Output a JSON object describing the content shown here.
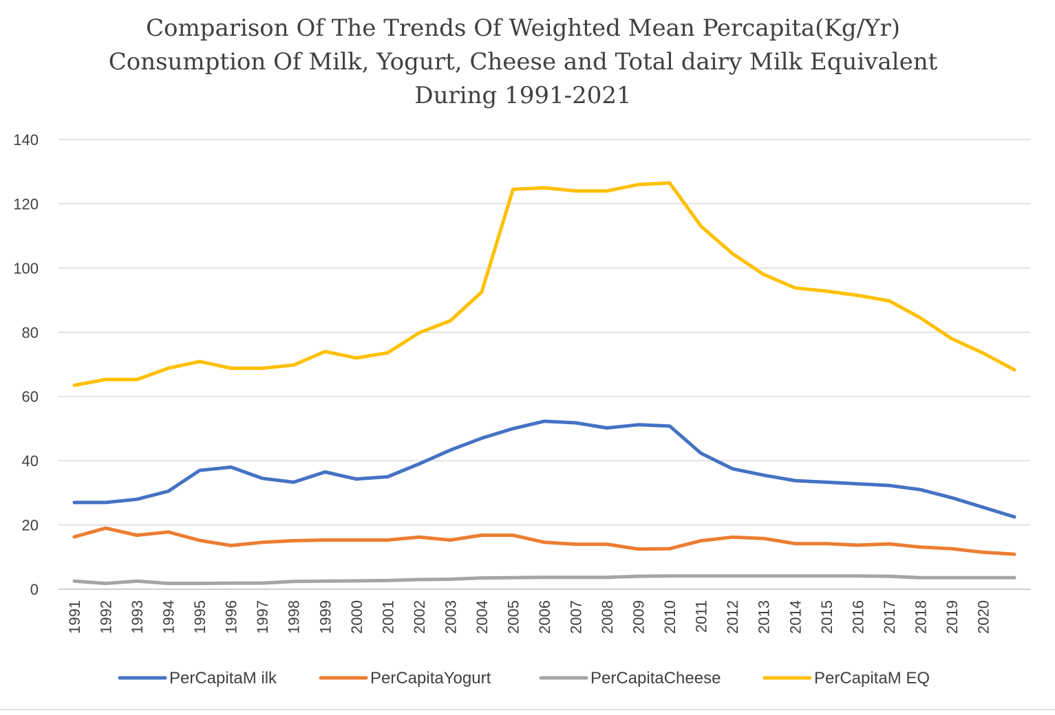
{
  "chart_data": {
    "type": "line",
    "title": [
      "Comparison Of The Trends Of Weighted Mean Percapita(Kg/Yr)",
      "Consumption Of Milk, Yogurt, Cheese and Total dairy Milk Equivalent",
      "During 1991-2021"
    ],
    "xlabel": "",
    "ylabel": "",
    "ylim": [
      0,
      140
    ],
    "yticks": [
      0,
      20,
      40,
      60,
      80,
      100,
      120,
      140
    ],
    "categories": [
      "1991",
      "1992",
      "1993",
      "1994",
      "1995",
      "1996",
      "1997",
      "1998",
      "1999",
      "2000",
      "2001",
      "2002",
      "2003",
      "2004",
      "2005",
      "2006",
      "2007",
      "2008",
      "2009",
      "2010",
      "2011",
      "2012",
      "2013",
      "2014",
      "2015",
      "2016",
      "2017",
      "2018",
      "2019",
      "2020",
      ""
    ],
    "grid": true,
    "legend_position": "bottom",
    "series": [
      {
        "name": "PerCapitaM ilk",
        "color": "#4472c4",
        "values": [
          27,
          27,
          28,
          30.5,
          37,
          38,
          34.5,
          33.3,
          36.5,
          34.3,
          35,
          39,
          43.3,
          47,
          50,
          52.3,
          51.8,
          50.2,
          51.2,
          50.8,
          42.3,
          37.5,
          35.5,
          33.8,
          33.3,
          32.8,
          32.3,
          31,
          28.5,
          25.5,
          22.5
        ]
      },
      {
        "name": "PerCapitaYogurt",
        "color": "#ed7d31",
        "values": [
          16.3,
          19,
          16.8,
          17.8,
          15.2,
          13.6,
          14.6,
          15.1,
          15.3,
          15.3,
          15.3,
          16.2,
          15.3,
          16.8,
          16.8,
          14.6,
          14,
          14,
          12.5,
          12.6,
          15.1,
          16.2,
          15.8,
          14.2,
          14.2,
          13.7,
          14.1,
          13.1,
          12.6,
          11.5,
          10.9
        ]
      },
      {
        "name": "PerCapitaCheese",
        "color": "#a5a5a5",
        "values": [
          2.5,
          1.8,
          2.5,
          1.8,
          1.8,
          1.9,
          1.9,
          2.4,
          2.5,
          2.6,
          2.7,
          3,
          3.1,
          3.5,
          3.6,
          3.7,
          3.7,
          3.7,
          4,
          4.1,
          4.1,
          4.1,
          4.1,
          4.1,
          4.1,
          4.1,
          4,
          3.6,
          3.6,
          3.6,
          3.6
        ]
      },
      {
        "name": "PerCapitaM EQ",
        "color": "#ffc000",
        "values": [
          63.5,
          65.3,
          65.3,
          68.8,
          70.9,
          68.8,
          68.8,
          69.8,
          74,
          72,
          73.6,
          79.8,
          83.6,
          92.5,
          124.5,
          125,
          124,
          124,
          126,
          126.5,
          113,
          104.5,
          98,
          93.8,
          92.8,
          91.5,
          89.8,
          84.5,
          78,
          73.5,
          68.3
        ]
      }
    ]
  }
}
